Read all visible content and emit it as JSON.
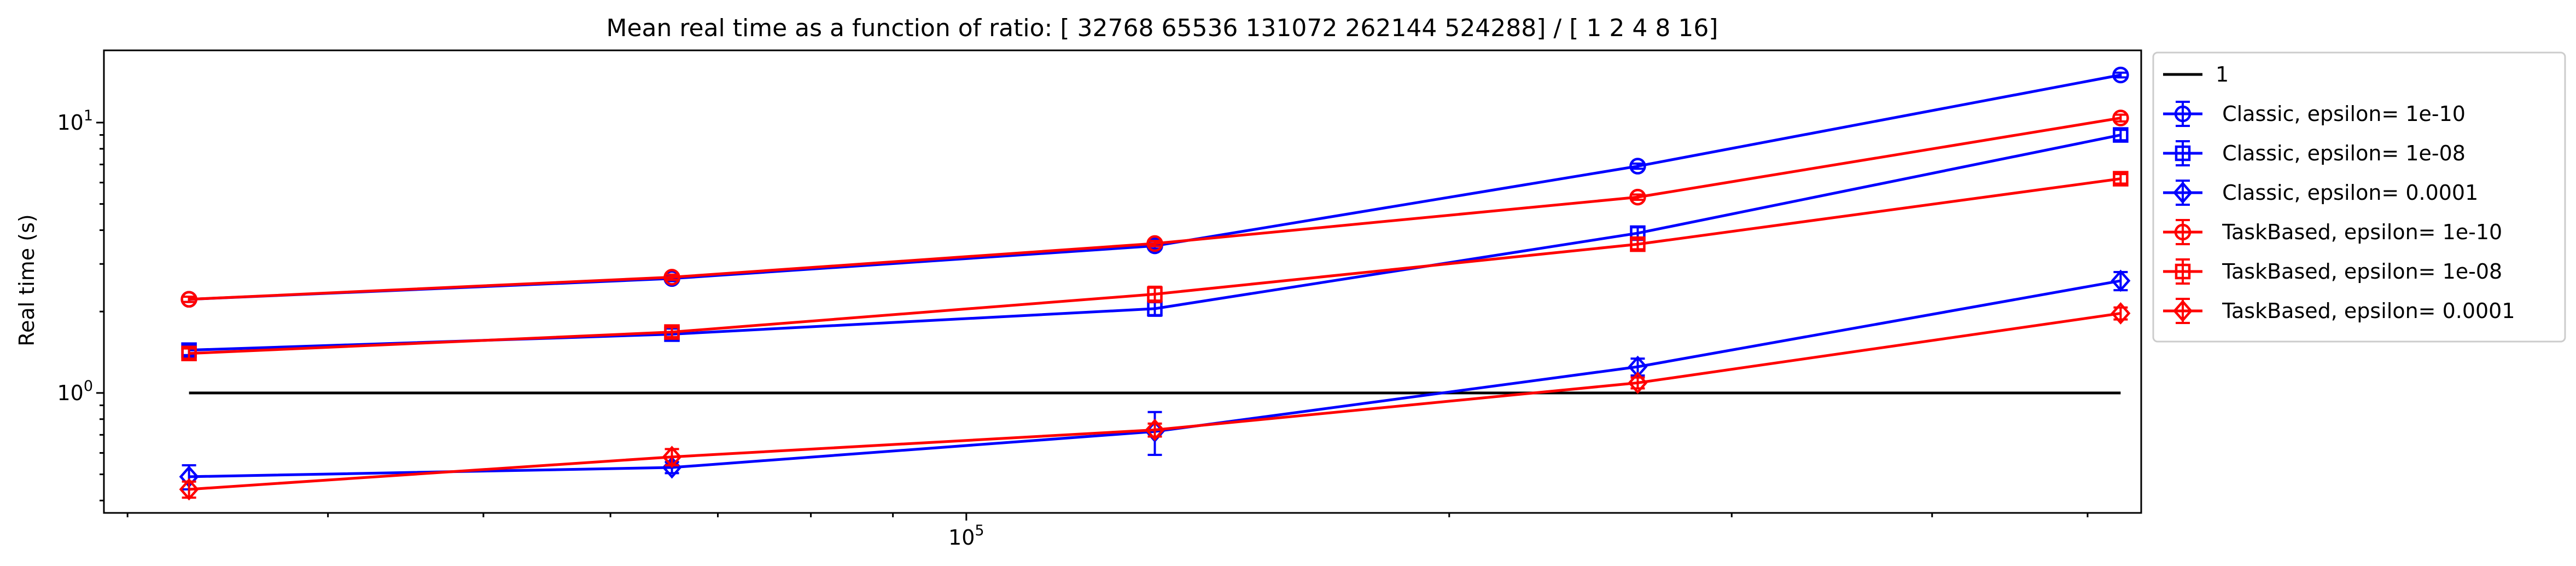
{
  "chart_data": {
    "type": "line",
    "title": "Mean real time as a function of ratio: [ 32768  65536 131072 262144 524288] / [ 1  2  4  8 16]",
    "xlabel": "",
    "ylabel": "Real time (s)",
    "xscale": "log",
    "yscale": "log",
    "xlim": [
      29000,
      540000
    ],
    "ylim": [
      0.36,
      18.5
    ],
    "x_tick_labels": [
      {
        "value": 100000,
        "label": "10^5"
      }
    ],
    "y_tick_labels": [
      {
        "value": 1,
        "label": "10^0"
      },
      {
        "value": 10,
        "label": "10^1"
      }
    ],
    "grid": false,
    "legend_position": "outside-right",
    "x": [
      32768,
      65536,
      131072,
      262144,
      524288
    ],
    "series": [
      {
        "name": "1",
        "color": "#000000",
        "marker": "none",
        "values": [
          1,
          1,
          1,
          1,
          1
        ],
        "errors": [
          0,
          0,
          0,
          0,
          0
        ]
      },
      {
        "name": " Classic, epsilon= 1e-10",
        "color": "#0000ff",
        "marker": "circle",
        "values": [
          2.22,
          2.65,
          3.5,
          6.9,
          15.0
        ],
        "errors": [
          0.05,
          0.06,
          0.08,
          0.15,
          0.3
        ]
      },
      {
        "name": " Classic, epsilon= 1e-08",
        "color": "#0000ff",
        "marker": "square",
        "values": [
          1.44,
          1.65,
          2.05,
          3.9,
          9.0
        ],
        "errors": [
          0.06,
          0.08,
          0.12,
          0.2,
          0.4
        ]
      },
      {
        "name": " Classic, epsilon= 0.0001",
        "color": "#0000ff",
        "marker": "diamond",
        "values": [
          0.49,
          0.53,
          0.72,
          1.25,
          2.6
        ],
        "errors": [
          0.05,
          0.025,
          0.13,
          0.09,
          0.2
        ]
      },
      {
        "name": " TaskBased, epsilon= 1e-10",
        "color": "#ff0000",
        "marker": "circle",
        "values": [
          2.22,
          2.68,
          3.57,
          5.3,
          10.4
        ],
        "errors": [
          0.05,
          0.06,
          0.08,
          0.12,
          0.3
        ]
      },
      {
        "name": " TaskBased, epsilon= 1e-08",
        "color": "#ff0000",
        "marker": "square",
        "values": [
          1.4,
          1.68,
          2.32,
          3.55,
          6.2
        ],
        "errors": [
          0.06,
          0.07,
          0.15,
          0.15,
          0.25
        ]
      },
      {
        "name": " TaskBased, epsilon= 0.0001",
        "color": "#ff0000",
        "marker": "diamond",
        "values": [
          0.44,
          0.58,
          0.73,
          1.09,
          1.97
        ],
        "errors": [
          0.03,
          0.04,
          0.04,
          0.05,
          0.1
        ]
      }
    ]
  }
}
